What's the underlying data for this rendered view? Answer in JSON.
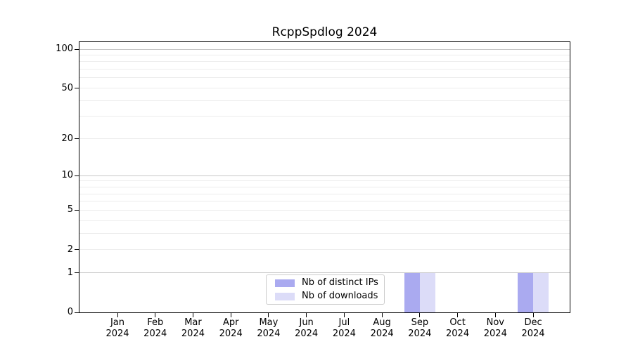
{
  "chart_data": {
    "type": "bar",
    "title": "RcppSpdlog 2024",
    "categories": [
      "Jan",
      "Feb",
      "Mar",
      "Apr",
      "May",
      "Jun",
      "Jul",
      "Aug",
      "Sep",
      "Oct",
      "Nov",
      "Dec"
    ],
    "year": "2024",
    "series": [
      {
        "name": "Nb of distinct IPs",
        "color": "#aaaaf0",
        "values": [
          0,
          0,
          0,
          0,
          0,
          0,
          0,
          0,
          1,
          0,
          0,
          1
        ]
      },
      {
        "name": "Nb of downloads",
        "color": "#dcdcf8",
        "values": [
          0,
          0,
          0,
          0,
          0,
          0,
          0,
          0,
          1,
          0,
          0,
          1
        ]
      }
    ],
    "y_axis": {
      "scale": "log1p",
      "ticks": [
        100,
        50,
        20,
        10,
        5,
        2,
        1,
        0
      ],
      "range": [
        0,
        113
      ]
    },
    "grid": {
      "major_lines": [
        1,
        10,
        100
      ],
      "minor_lines": [
        2,
        3,
        4,
        5,
        6,
        7,
        8,
        9,
        20,
        30,
        40,
        50,
        60,
        70,
        80,
        90
      ],
      "major_color": "#c6c6c6",
      "minor_color": "#ececec"
    },
    "legend_position": "bottom-center",
    "xlabel": "",
    "ylabel": ""
  },
  "colors": {
    "background": "#ffffff",
    "axis": "#000000",
    "text": "#000000"
  }
}
